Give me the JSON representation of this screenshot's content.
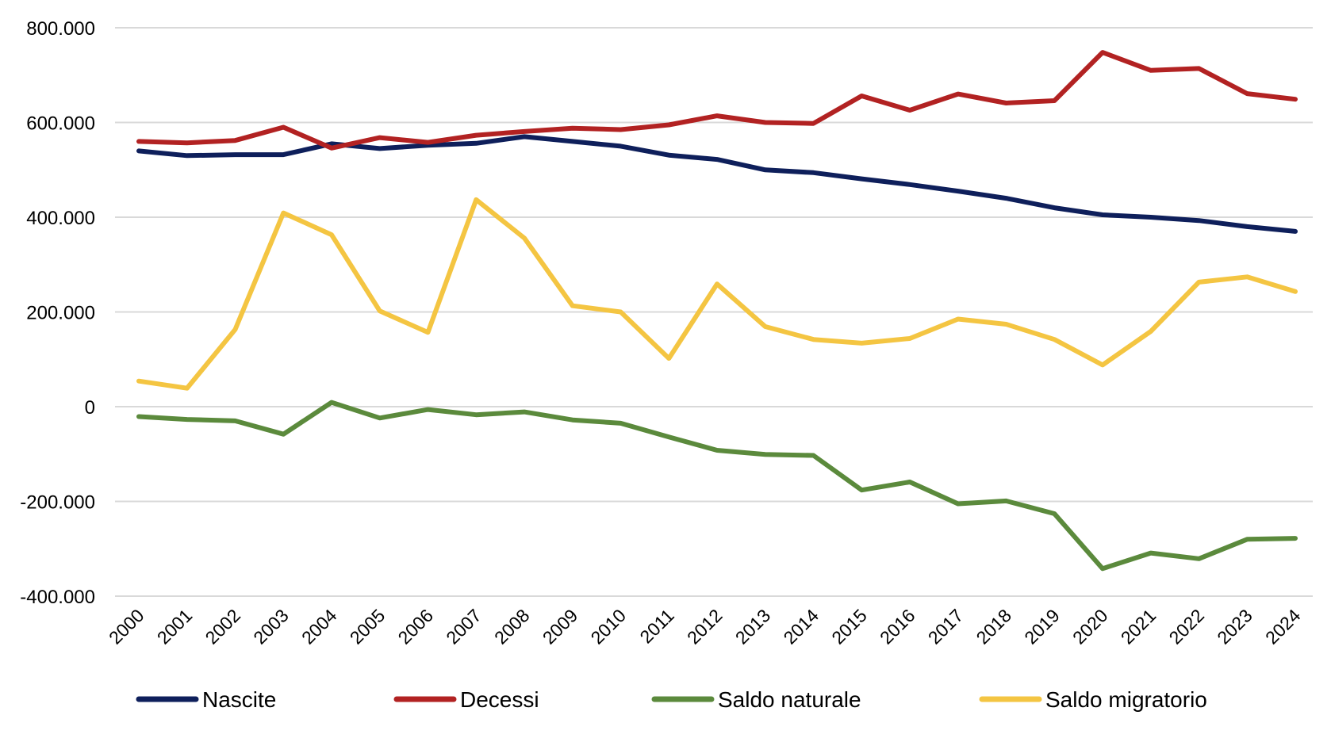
{
  "chart_data": {
    "type": "line",
    "title": "",
    "xlabel": "",
    "ylabel": "",
    "ylim": [
      -400000,
      800000
    ],
    "yticks": [
      {
        "value": 800000,
        "label": "800.000"
      },
      {
        "value": 600000,
        "label": "600.000"
      },
      {
        "value": 400000,
        "label": "400.000"
      },
      {
        "value": 200000,
        "label": "200.000"
      },
      {
        "value": 0,
        "label": "0"
      },
      {
        "value": -200000,
        "label": "-200.000"
      },
      {
        "value": -400000,
        "label": "-400.000"
      }
    ],
    "grid": true,
    "legend_position": "bottom",
    "categories": [
      "2000",
      "2001",
      "2002",
      "2003",
      "2004",
      "2005",
      "2006",
      "2007",
      "2008",
      "2009",
      "2010",
      "2011",
      "2012",
      "2013",
      "2014",
      "2015",
      "2016",
      "2017",
      "2018",
      "2019",
      "2020",
      "2021",
      "2022",
      "2023",
      "2024"
    ],
    "series": [
      {
        "name": "Nascite",
        "color": "#0e1f5b",
        "values": [
          540000,
          530000,
          532000,
          532000,
          555000,
          545000,
          552000,
          556000,
          570000,
          560000,
          550000,
          531000,
          522000,
          500000,
          494000,
          481000,
          469000,
          455000,
          440000,
          420000,
          405000,
          400000,
          393000,
          380000,
          370000
        ]
      },
      {
        "name": "Decessi",
        "color": "#b22222",
        "values": [
          560000,
          557000,
          562000,
          590000,
          546000,
          568000,
          558000,
          573000,
          581000,
          588000,
          585000,
          595000,
          614000,
          600000,
          598000,
          656000,
          626000,
          660000,
          641000,
          646000,
          748000,
          710000,
          714000,
          661000,
          649000
        ]
      },
      {
        "name": "Saldo naturale",
        "color": "#5b8a3c",
        "values": [
          -21000,
          -27000,
          -30000,
          -58000,
          9000,
          -24000,
          -6000,
          -17000,
          -11000,
          -28000,
          -35000,
          -64000,
          -92000,
          -101000,
          -103000,
          -176000,
          -159000,
          -205000,
          -199000,
          -226000,
          -342000,
          -309000,
          -321000,
          -280000,
          -278000
        ]
      },
      {
        "name": "Saldo migratorio",
        "color": "#f4c542",
        "values": [
          54000,
          39000,
          163000,
          409000,
          363000,
          202000,
          157000,
          437000,
          356000,
          213000,
          200000,
          102000,
          259000,
          169000,
          142000,
          134000,
          144000,
          185000,
          174000,
          142000,
          88000,
          159000,
          263000,
          274000,
          243000
        ]
      }
    ]
  }
}
